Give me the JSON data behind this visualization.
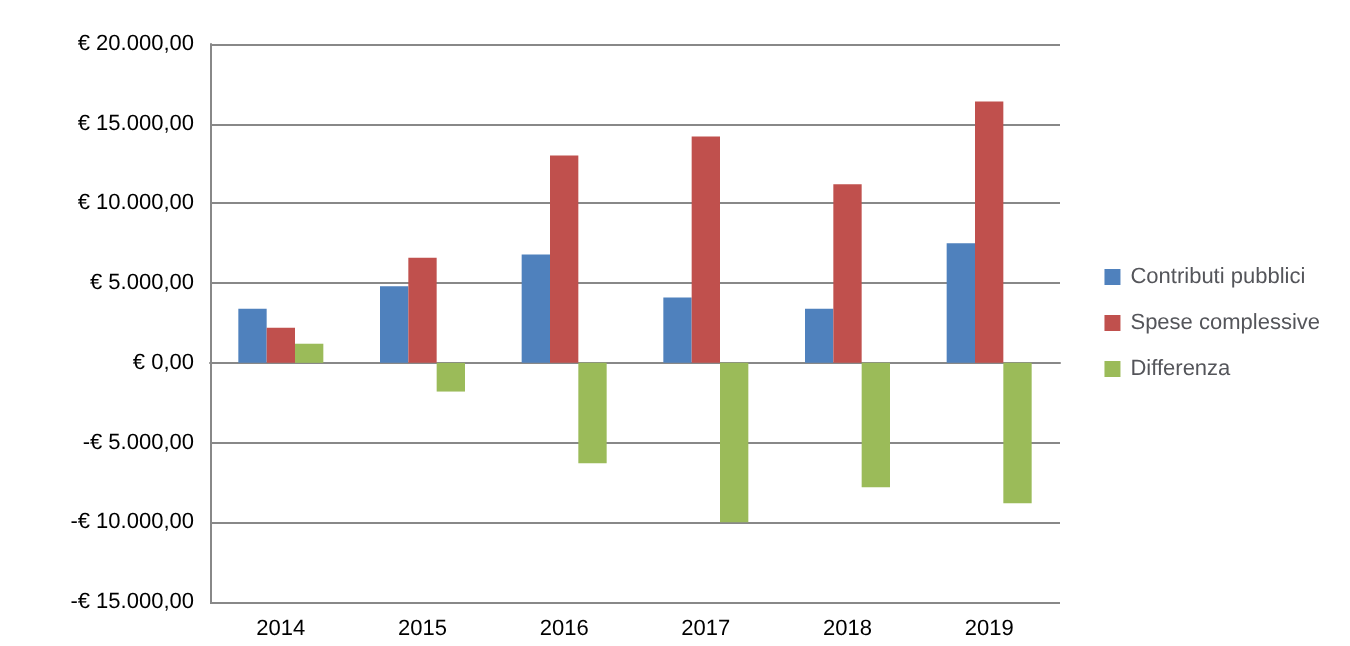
{
  "chart_data": {
    "type": "bar",
    "categories": [
      "2014",
      "2015",
      "2016",
      "2017",
      "2018",
      "2019"
    ],
    "series": [
      {
        "name": "Contributi pubblici",
        "color": "#4f81bd",
        "values": [
          3400,
          4800,
          6800,
          4100,
          3400,
          7500
        ]
      },
      {
        "name": "Spese complessive",
        "color": "#c0504d",
        "values": [
          2200,
          6600,
          13000,
          14200,
          11200,
          16400
        ]
      },
      {
        "name": "Differenza",
        "color": "#9bbb59",
        "values": [
          1200,
          -1800,
          -6300,
          -10000,
          -7800,
          -8800
        ]
      }
    ],
    "ylim": [
      -15000,
      20000
    ],
    "yticks": [
      {
        "value": -15000,
        "label": "-€ 15.000,00"
      },
      {
        "value": -10000,
        "label": "-€ 10.000,00"
      },
      {
        "value": -5000,
        "label": "-€ 5.000,00"
      },
      {
        "value": 0,
        "label": "€ 0,00"
      },
      {
        "value": 5000,
        "label": "€ 5.000,00"
      },
      {
        "value": 10000,
        "label": "€ 10.000,00"
      },
      {
        "value": 15000,
        "label": "€ 15.000,00"
      },
      {
        "value": 20000,
        "label": "€ 20.000,00"
      }
    ],
    "grid": "y",
    "legend": "right"
  }
}
